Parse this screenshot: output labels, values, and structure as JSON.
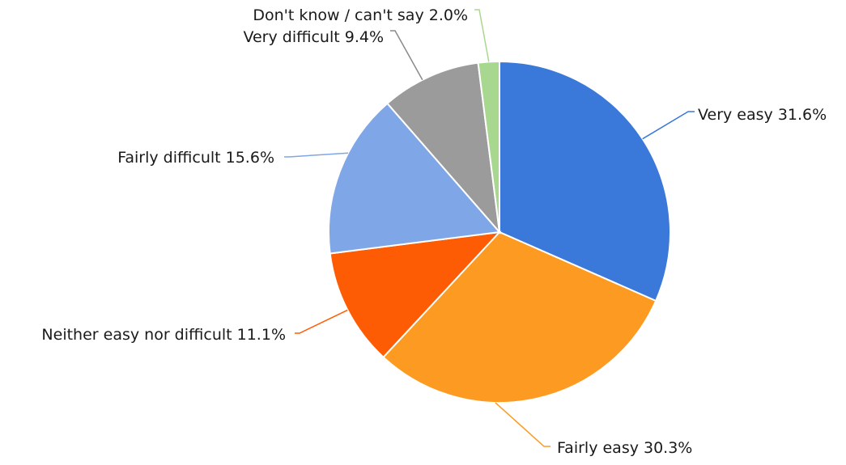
{
  "chart_data": {
    "type": "pie",
    "title": "",
    "start": "top-clockwise",
    "slices": [
      {
        "label": "Very easy",
        "value": 31.6,
        "display": "Very easy 31.6%",
        "color": "#3a78d9",
        "leader_color": "#3a78d9"
      },
      {
        "label": "Fairly easy",
        "value": 30.3,
        "display": "Fairly easy 30.3%",
        "color": "#fd9a21",
        "leader_color": "#fd9a21"
      },
      {
        "label": "Neither easy nor difficult",
        "value": 11.1,
        "display": "Neither easy nor difficult 11.1%",
        "color": "#fe5c04",
        "leader_color": "#fe5c04"
      },
      {
        "label": "Fairly difficult",
        "value": 15.6,
        "display": "Fairly difficult 15.6%",
        "color": "#7fa6e6",
        "leader_color": "#7fa6e6"
      },
      {
        "label": "Very difficult",
        "value": 9.4,
        "display": "Very difficult 9.4%",
        "color": "#9b9b9c",
        "leader_color": "#8a8a8a"
      },
      {
        "label": "Don't know / can't say",
        "value": 2.0,
        "display": "Don't know / can't say 2.0%",
        "color": "#a8d890",
        "leader_color": "#a8d890"
      }
    ]
  }
}
